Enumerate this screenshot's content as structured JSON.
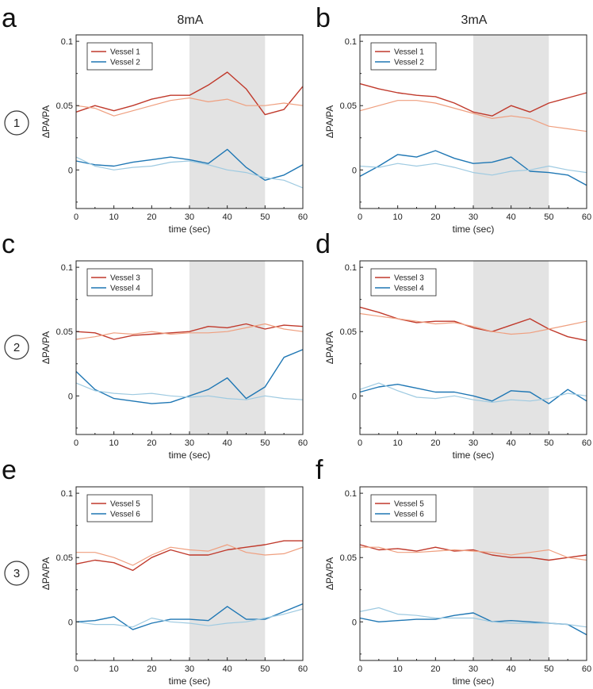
{
  "figure": {
    "column_titles": [
      "8mA",
      "3mA"
    ],
    "row_labels": [
      "1",
      "2",
      "3"
    ],
    "stim_window": [
      30,
      50
    ],
    "colors": {
      "red_dark": "#c0392b",
      "red_light": "#ef9f7f",
      "blue_dark": "#1f77b4",
      "blue_light": "#9ecae1",
      "stim_shade": "#e3e3e3"
    }
  },
  "chart_data": [
    {
      "id": "a",
      "type": "line",
      "column": "8mA",
      "row": "1",
      "xlabel": "time (sec)",
      "ylabel": "ΔPA/PA",
      "xlim": [
        0,
        60
      ],
      "ylim": [
        -0.03,
        0.105
      ],
      "xticks": [
        0,
        10,
        20,
        30,
        40,
        50,
        60
      ],
      "yticks": [
        0,
        0.05,
        0.1
      ],
      "legend": [
        "Vessel 1",
        "Vessel 2"
      ],
      "x": [
        0,
        5,
        10,
        15,
        20,
        25,
        30,
        35,
        40,
        45,
        50,
        55,
        60
      ],
      "series": [
        {
          "name": "Vessel 1",
          "color": "red_dark",
          "values": [
            0.045,
            0.05,
            0.046,
            0.05,
            0.055,
            0.058,
            0.058,
            0.066,
            0.076,
            0.063,
            0.043,
            0.047,
            0.065
          ]
        },
        {
          "name": "Vessel 1 (light)",
          "color": "red_light",
          "values": [
            0.05,
            0.048,
            0.042,
            0.046,
            0.05,
            0.054,
            0.056,
            0.053,
            0.055,
            0.05,
            0.05,
            0.052,
            0.05
          ]
        },
        {
          "name": "Vessel 2",
          "color": "blue_dark",
          "values": [
            0.007,
            0.004,
            0.003,
            0.006,
            0.008,
            0.01,
            0.008,
            0.005,
            0.016,
            0.002,
            -0.008,
            -0.004,
            0.004
          ]
        },
        {
          "name": "Vessel 2 (light)",
          "color": "blue_light",
          "values": [
            0.01,
            0.003,
            0.0,
            0.002,
            0.003,
            0.006,
            0.007,
            0.004,
            0.0,
            -0.002,
            -0.006,
            -0.008,
            -0.014
          ]
        }
      ]
    },
    {
      "id": "b",
      "type": "line",
      "column": "3mA",
      "row": "1",
      "xlabel": "time (sec)",
      "ylabel": "ΔPA/PA",
      "xlim": [
        0,
        60
      ],
      "ylim": [
        -0.03,
        0.105
      ],
      "xticks": [
        0,
        10,
        20,
        30,
        40,
        50,
        60
      ],
      "yticks": [
        0,
        0.05,
        0.1
      ],
      "legend": [
        "Vessel 1",
        "Vessel 2"
      ],
      "x": [
        0,
        5,
        10,
        15,
        20,
        25,
        30,
        35,
        40,
        45,
        50,
        55,
        60
      ],
      "series": [
        {
          "name": "Vessel 1",
          "color": "red_dark",
          "values": [
            0.067,
            0.063,
            0.06,
            0.058,
            0.057,
            0.052,
            0.045,
            0.042,
            0.05,
            0.045,
            0.052,
            0.056,
            0.06
          ]
        },
        {
          "name": "Vessel 1 (light)",
          "color": "red_light",
          "values": [
            0.046,
            0.05,
            0.054,
            0.054,
            0.052,
            0.048,
            0.044,
            0.04,
            0.042,
            0.04,
            0.034,
            0.032,
            0.03
          ]
        },
        {
          "name": "Vessel 2",
          "color": "blue_dark",
          "values": [
            -0.005,
            0.003,
            0.012,
            0.01,
            0.015,
            0.009,
            0.005,
            0.006,
            0.01,
            -0.001,
            -0.002,
            -0.004,
            -0.012
          ]
        },
        {
          "name": "Vessel 2 (light)",
          "color": "blue_light",
          "values": [
            0.003,
            0.002,
            0.005,
            0.003,
            0.005,
            0.002,
            -0.002,
            -0.004,
            -0.001,
            0.0,
            0.003,
            0.0,
            -0.002
          ]
        }
      ]
    },
    {
      "id": "c",
      "type": "line",
      "column": "8mA",
      "row": "2",
      "xlabel": "time (sec)",
      "ylabel": "ΔPA/PA",
      "xlim": [
        0,
        60
      ],
      "ylim": [
        -0.03,
        0.105
      ],
      "xticks": [
        0,
        10,
        20,
        30,
        40,
        50,
        60
      ],
      "yticks": [
        0,
        0.05,
        0.1
      ],
      "legend": [
        "Vessel 3",
        "Vessel 4"
      ],
      "x": [
        0,
        5,
        10,
        15,
        20,
        25,
        30,
        35,
        40,
        45,
        50,
        55,
        60
      ],
      "series": [
        {
          "name": "Vessel 3",
          "color": "red_dark",
          "values": [
            0.05,
            0.049,
            0.044,
            0.047,
            0.048,
            0.049,
            0.05,
            0.054,
            0.053,
            0.056,
            0.052,
            0.055,
            0.054
          ]
        },
        {
          "name": "Vessel 3 (light)",
          "color": "red_light",
          "values": [
            0.044,
            0.046,
            0.049,
            0.048,
            0.05,
            0.048,
            0.049,
            0.049,
            0.05,
            0.053,
            0.056,
            0.052,
            0.05
          ]
        },
        {
          "name": "Vessel 4",
          "color": "blue_dark",
          "values": [
            0.019,
            0.005,
            -0.002,
            -0.004,
            -0.006,
            -0.005,
            0.0,
            0.005,
            0.014,
            -0.002,
            0.007,
            0.03,
            0.036
          ]
        },
        {
          "name": "Vessel 4 (light)",
          "color": "blue_light",
          "values": [
            0.01,
            0.004,
            0.002,
            0.001,
            0.002,
            0.0,
            -0.001,
            0.0,
            -0.002,
            -0.003,
            0.0,
            -0.002,
            -0.003
          ]
        }
      ]
    },
    {
      "id": "d",
      "type": "line",
      "column": "3mA",
      "row": "2",
      "xlabel": "time (sec)",
      "ylabel": "ΔPA/PA",
      "xlim": [
        0,
        60
      ],
      "ylim": [
        -0.03,
        0.105
      ],
      "xticks": [
        0,
        10,
        20,
        30,
        40,
        50,
        60
      ],
      "yticks": [
        0,
        0.05,
        0.1
      ],
      "legend": [
        "Vessel 3",
        "Vessel 4"
      ],
      "x": [
        0,
        5,
        10,
        15,
        20,
        25,
        30,
        35,
        40,
        45,
        50,
        55,
        60
      ],
      "series": [
        {
          "name": "Vessel 3",
          "color": "red_dark",
          "values": [
            0.069,
            0.065,
            0.06,
            0.057,
            0.058,
            0.058,
            0.053,
            0.05,
            0.055,
            0.06,
            0.052,
            0.046,
            0.043
          ]
        },
        {
          "name": "Vessel 3 (light)",
          "color": "red_light",
          "values": [
            0.064,
            0.062,
            0.06,
            0.058,
            0.056,
            0.057,
            0.054,
            0.05,
            0.048,
            0.049,
            0.052,
            0.055,
            0.058
          ]
        },
        {
          "name": "Vessel 4",
          "color": "blue_dark",
          "values": [
            0.003,
            0.007,
            0.009,
            0.006,
            0.003,
            0.003,
            0.0,
            -0.004,
            0.004,
            0.003,
            -0.006,
            0.005,
            -0.004
          ]
        },
        {
          "name": "Vessel 4 (light)",
          "color": "blue_light",
          "values": [
            0.005,
            0.01,
            0.004,
            -0.001,
            -0.002,
            0.0,
            -0.003,
            -0.005,
            -0.003,
            -0.004,
            -0.002,
            0.002,
            0.0
          ]
        }
      ]
    },
    {
      "id": "e",
      "type": "line",
      "column": "8mA",
      "row": "3",
      "xlabel": "time (sec)",
      "ylabel": "ΔPA/PA",
      "xlim": [
        0,
        60
      ],
      "ylim": [
        -0.03,
        0.105
      ],
      "xticks": [
        0,
        10,
        20,
        30,
        40,
        50,
        60
      ],
      "yticks": [
        0,
        0.05,
        0.1
      ],
      "legend": [
        "Vessel 5",
        "Vessel 6"
      ],
      "x": [
        0,
        5,
        10,
        15,
        20,
        25,
        30,
        35,
        40,
        45,
        50,
        55,
        60
      ],
      "series": [
        {
          "name": "Vessel 5",
          "color": "red_dark",
          "values": [
            0.045,
            0.048,
            0.046,
            0.04,
            0.05,
            0.056,
            0.052,
            0.052,
            0.056,
            0.058,
            0.06,
            0.063,
            0.063
          ]
        },
        {
          "name": "Vessel 5 (light)",
          "color": "red_light",
          "values": [
            0.054,
            0.054,
            0.05,
            0.044,
            0.052,
            0.058,
            0.056,
            0.055,
            0.06,
            0.054,
            0.052,
            0.053,
            0.058
          ]
        },
        {
          "name": "Vessel 6",
          "color": "blue_dark",
          "values": [
            0.0,
            0.001,
            0.004,
            -0.006,
            -0.001,
            0.002,
            0.002,
            0.001,
            0.012,
            0.002,
            0.002,
            0.008,
            0.014
          ]
        },
        {
          "name": "Vessel 6 (light)",
          "color": "blue_light",
          "values": [
            0.0,
            -0.002,
            -0.002,
            -0.004,
            0.003,
            0.0,
            -0.001,
            -0.003,
            -0.001,
            0.0,
            0.003,
            0.006,
            0.01
          ]
        }
      ]
    },
    {
      "id": "f",
      "type": "line",
      "column": "3mA",
      "row": "3",
      "xlabel": "time (sec)",
      "ylabel": "ΔPA/PA",
      "xlim": [
        0,
        60
      ],
      "ylim": [
        -0.03,
        0.105
      ],
      "xticks": [
        0,
        10,
        20,
        30,
        40,
        50,
        60
      ],
      "yticks": [
        0,
        0.05,
        0.1
      ],
      "legend": [
        "Vessel 5",
        "Vessel 6"
      ],
      "x": [
        0,
        5,
        10,
        15,
        20,
        25,
        30,
        35,
        40,
        45,
        50,
        55,
        60
      ],
      "series": [
        {
          "name": "Vessel 5",
          "color": "red_dark",
          "values": [
            0.06,
            0.056,
            0.057,
            0.055,
            0.058,
            0.055,
            0.056,
            0.052,
            0.05,
            0.05,
            0.048,
            0.05,
            0.052
          ]
        },
        {
          "name": "Vessel 5 (light)",
          "color": "red_light",
          "values": [
            0.058,
            0.058,
            0.054,
            0.054,
            0.055,
            0.056,
            0.055,
            0.054,
            0.052,
            0.054,
            0.056,
            0.05,
            0.048
          ]
        },
        {
          "name": "Vessel 6",
          "color": "blue_dark",
          "values": [
            0.003,
            0.0,
            0.001,
            0.002,
            0.002,
            0.005,
            0.007,
            0.0,
            0.001,
            0.0,
            -0.001,
            -0.002,
            -0.01
          ]
        },
        {
          "name": "Vessel 6 (light)",
          "color": "blue_light",
          "values": [
            0.008,
            0.011,
            0.006,
            0.005,
            0.003,
            0.003,
            0.003,
            0.0,
            -0.001,
            -0.001,
            -0.001,
            -0.002,
            -0.004
          ]
        }
      ]
    }
  ]
}
